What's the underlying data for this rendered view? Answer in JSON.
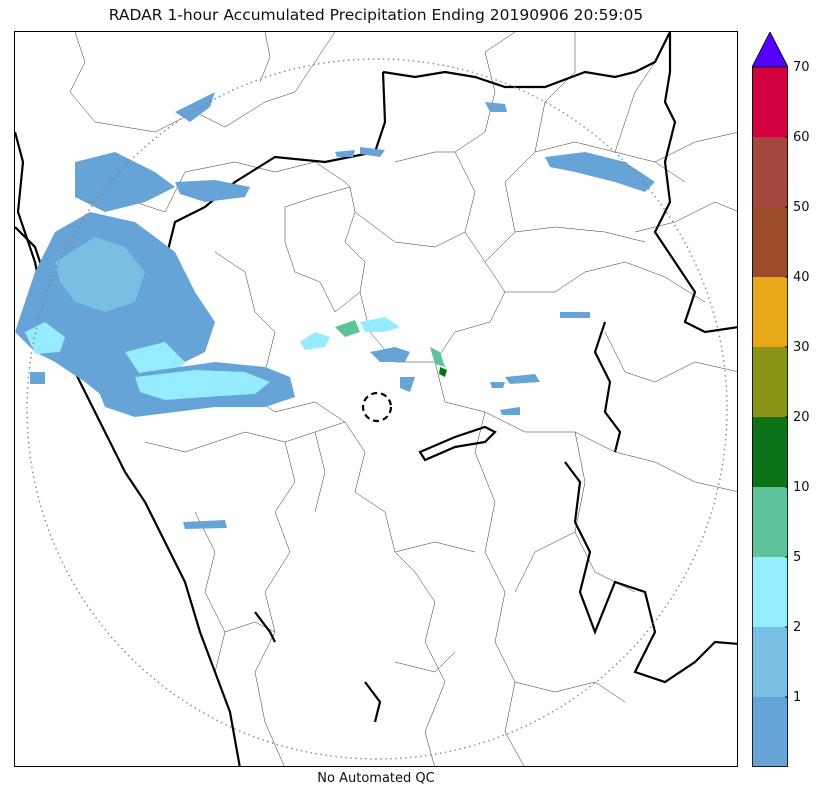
{
  "title": "RADAR 1-hour Accumulated Precipitation Ending 20190906 20:59:05",
  "footer": "No Automated QC",
  "colorbar": {
    "extend": "max",
    "extend_color": "#5500ff",
    "bins": [
      {
        "color": "#66a3d6"
      },
      {
        "color": "#77bfe3"
      },
      {
        "color": "#96ecff"
      },
      {
        "color": "#5ec39a"
      },
      {
        "color": "#0c7218"
      },
      {
        "color": "#8a9418"
      },
      {
        "color": "#e8a919"
      },
      {
        "color": "#9b4d29"
      },
      {
        "color": "#a5463f"
      },
      {
        "color": "#d3003f"
      }
    ],
    "ticks": [
      "1",
      "2",
      "5",
      "10",
      "20",
      "30",
      "40",
      "50",
      "60",
      "70"
    ]
  },
  "map": {
    "range_ring": "dotted gray circle around radar site",
    "radar_site_marker": "dashed black circle",
    "precip_colors": {
      "light": "#66a3d6",
      "light2": "#77bfe3",
      "medium": "#96ecff",
      "teal": "#5ec39a",
      "green": "#0c7218"
    }
  }
}
